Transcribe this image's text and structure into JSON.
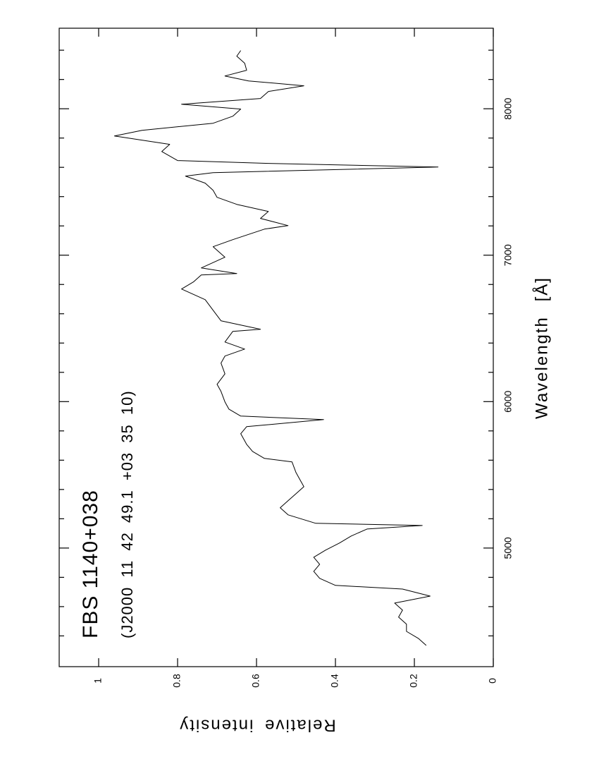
{
  "chart_data": {
    "type": "line",
    "title": "FBS 1140+038",
    "subtitle": "(J2000 11 42 49.1 +03 35 10)",
    "x_label": "Wavelength [Å]",
    "y_label": "Relative intensity",
    "color": "#000000",
    "xlim": [
      4190,
      8550
    ],
    "xticks": [
      5000,
      6000,
      7000,
      8000
    ],
    "xminorticks": [
      4400,
      4600,
      4800,
      5200,
      5400,
      5600,
      5800,
      6200,
      6400,
      6600,
      6800,
      7200,
      7400,
      7600,
      7800,
      8200,
      8400
    ],
    "ylim": [
      0,
      1.1
    ],
    "yticks": [
      0,
      0.2,
      0.4,
      0.6,
      0.8,
      1
    ],
    "x": [
      4335,
      4383,
      4431,
      4480,
      4528,
      4576,
      4624,
      4672,
      4720,
      4745,
      4793,
      4841,
      4889,
      4937,
      4986,
      5034,
      5082,
      5130,
      5154,
      5169,
      5227,
      5275,
      5323,
      5371,
      5419,
      5467,
      5516,
      5588,
      5612,
      5660,
      5708,
      5781,
      5829,
      5877,
      5901,
      5949,
      5998,
      6070,
      6118,
      6190,
      6263,
      6311,
      6359,
      6407,
      6480,
      6494,
      6552,
      6624,
      6696,
      6769,
      6817,
      6865,
      6875,
      6913,
      6986,
      7058,
      7106,
      7178,
      7202,
      7251,
      7299,
      7347,
      7395,
      7443,
      7492,
      7540,
      7564,
      7602,
      7627,
      7646,
      7708,
      7757,
      7814,
      7853,
      7901,
      7949,
      7998,
      8031,
      8070,
      8118,
      8157,
      8190,
      8224,
      8263,
      8311,
      8359,
      8398
    ],
    "values": [
      0.17,
      0.19,
      0.22,
      0.22,
      0.24,
      0.23,
      0.25,
      0.16,
      0.23,
      0.4,
      0.44,
      0.455,
      0.44,
      0.455,
      0.425,
      0.39,
      0.36,
      0.32,
      0.18,
      0.45,
      0.52,
      0.54,
      0.52,
      0.5,
      0.48,
      0.49,
      0.5,
      0.51,
      0.58,
      0.61,
      0.625,
      0.64,
      0.625,
      0.43,
      0.64,
      0.67,
      0.68,
      0.69,
      0.7,
      0.68,
      0.69,
      0.68,
      0.63,
      0.68,
      0.66,
      0.59,
      0.69,
      0.71,
      0.73,
      0.79,
      0.76,
      0.74,
      0.65,
      0.74,
      0.68,
      0.71,
      0.66,
      0.58,
      0.52,
      0.59,
      0.57,
      0.65,
      0.7,
      0.71,
      0.73,
      0.78,
      0.71,
      0.14,
      0.57,
      0.8,
      0.84,
      0.82,
      0.96,
      0.89,
      0.71,
      0.66,
      0.64,
      0.79,
      0.59,
      0.57,
      0.48,
      0.62,
      0.68,
      0.625,
      0.63,
      0.65,
      0.64
    ]
  }
}
